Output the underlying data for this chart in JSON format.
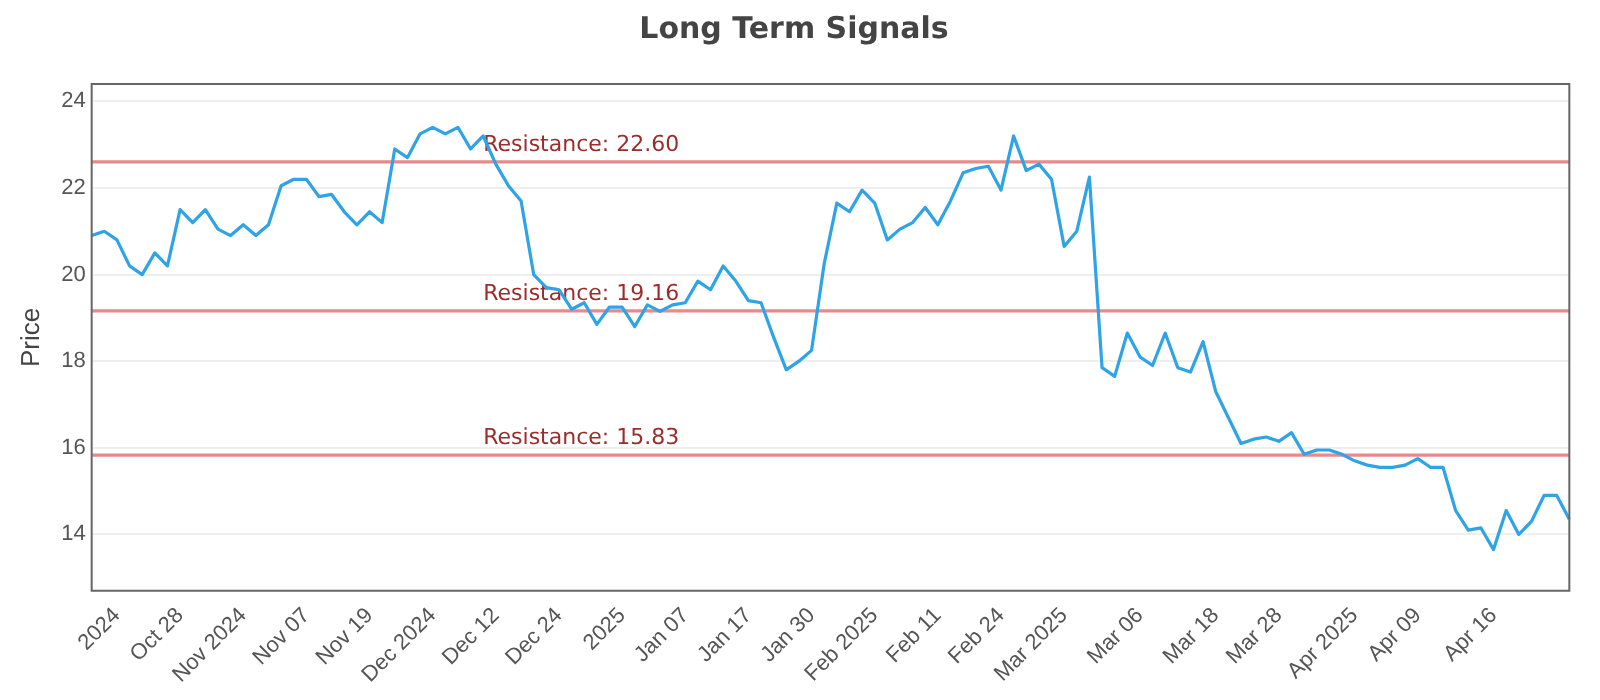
{
  "chart_data": {
    "type": "line",
    "title": "Long Term Signals",
    "ylabel": "Price",
    "categories": [
      null,
      null,
      "2024",
      null,
      null,
      null,
      null,
      "Oct 28",
      null,
      null,
      null,
      null,
      "Nov 2024",
      null,
      null,
      null,
      null,
      "Nov 07",
      null,
      null,
      null,
      null,
      "Nov 19",
      null,
      null,
      null,
      null,
      "Dec 2024",
      null,
      null,
      null,
      null,
      "Dec 12",
      null,
      null,
      null,
      null,
      "Dec 24",
      null,
      null,
      null,
      null,
      "2025",
      null,
      null,
      null,
      null,
      "Jan 07",
      null,
      null,
      null,
      null,
      "Jan 17",
      null,
      null,
      null,
      null,
      "Jan 30",
      null,
      null,
      null,
      null,
      "Feb 2025",
      null,
      null,
      null,
      null,
      "Feb 11",
      null,
      null,
      null,
      null,
      "Feb 24",
      null,
      null,
      null,
      null,
      "Mar 2025",
      null,
      null,
      null,
      null,
      null,
      "Mar 06",
      null,
      null,
      null,
      null,
      null,
      "Mar 18",
      null,
      null,
      null,
      null,
      "Mar 28",
      null,
      null,
      null,
      null,
      null,
      "Apr 2025",
      null,
      null,
      null,
      null,
      "Apr 09",
      null,
      null,
      null,
      null,
      null,
      "Apr 16",
      null,
      null,
      null,
      null,
      null,
      null
    ],
    "series": [
      {
        "color": "#2ea3e6",
        "values": [
          20.9,
          21.0,
          20.8,
          20.2,
          20.0,
          20.5,
          20.2,
          21.5,
          21.2,
          21.5,
          21.05,
          20.9,
          21.15,
          20.9,
          21.15,
          22.05,
          22.2,
          22.2,
          21.8,
          21.85,
          21.45,
          21.15,
          21.45,
          21.2,
          22.9,
          22.7,
          23.25,
          23.4,
          23.25,
          23.4,
          22.9,
          23.2,
          22.55,
          22.05,
          21.7,
          20.0,
          19.7,
          19.65,
          19.2,
          19.35,
          18.85,
          19.25,
          19.25,
          18.8,
          19.3,
          19.15,
          19.3,
          19.35,
          19.85,
          19.65,
          20.2,
          19.85,
          19.4,
          19.35,
          18.55,
          17.8,
          18.0,
          18.25,
          20.25,
          21.65,
          21.45,
          21.95,
          21.65,
          20.8,
          21.05,
          21.2,
          21.55,
          21.15,
          21.7,
          22.35,
          22.45,
          22.5,
          21.95,
          23.2,
          22.4,
          22.55,
          22.2,
          20.65,
          21.0,
          22.25,
          17.85,
          17.65,
          18.65,
          18.1,
          17.9,
          18.65,
          17.85,
          17.75,
          18.45,
          17.3,
          16.7,
          16.1,
          16.2,
          16.25,
          16.15,
          16.35,
          15.85,
          15.95,
          15.95,
          15.85,
          15.7,
          15.6,
          15.55,
          15.55,
          15.6,
          15.75,
          15.55,
          15.55,
          14.55,
          14.1,
          14.15,
          13.65,
          14.55,
          14.0,
          14.3,
          14.9,
          14.9,
          14.35
        ]
      }
    ],
    "ylim": [
      12.7,
      24.4
    ],
    "yticks": [
      14,
      16,
      18,
      20,
      22,
      24
    ],
    "grid": "y",
    "marker": "none",
    "line_style": "solid",
    "ref_lines": [
      {
        "axis": "y",
        "value": 22.6,
        "label": "Resistance: 22.60",
        "color": "#e88a8a"
      },
      {
        "axis": "y",
        "value": 19.16,
        "label": "Resistance: 19.16",
        "color": "#e88a8a"
      },
      {
        "axis": "y",
        "value": 15.83,
        "label": "Resistance: 15.83",
        "color": "#e88a8a"
      }
    ]
  }
}
